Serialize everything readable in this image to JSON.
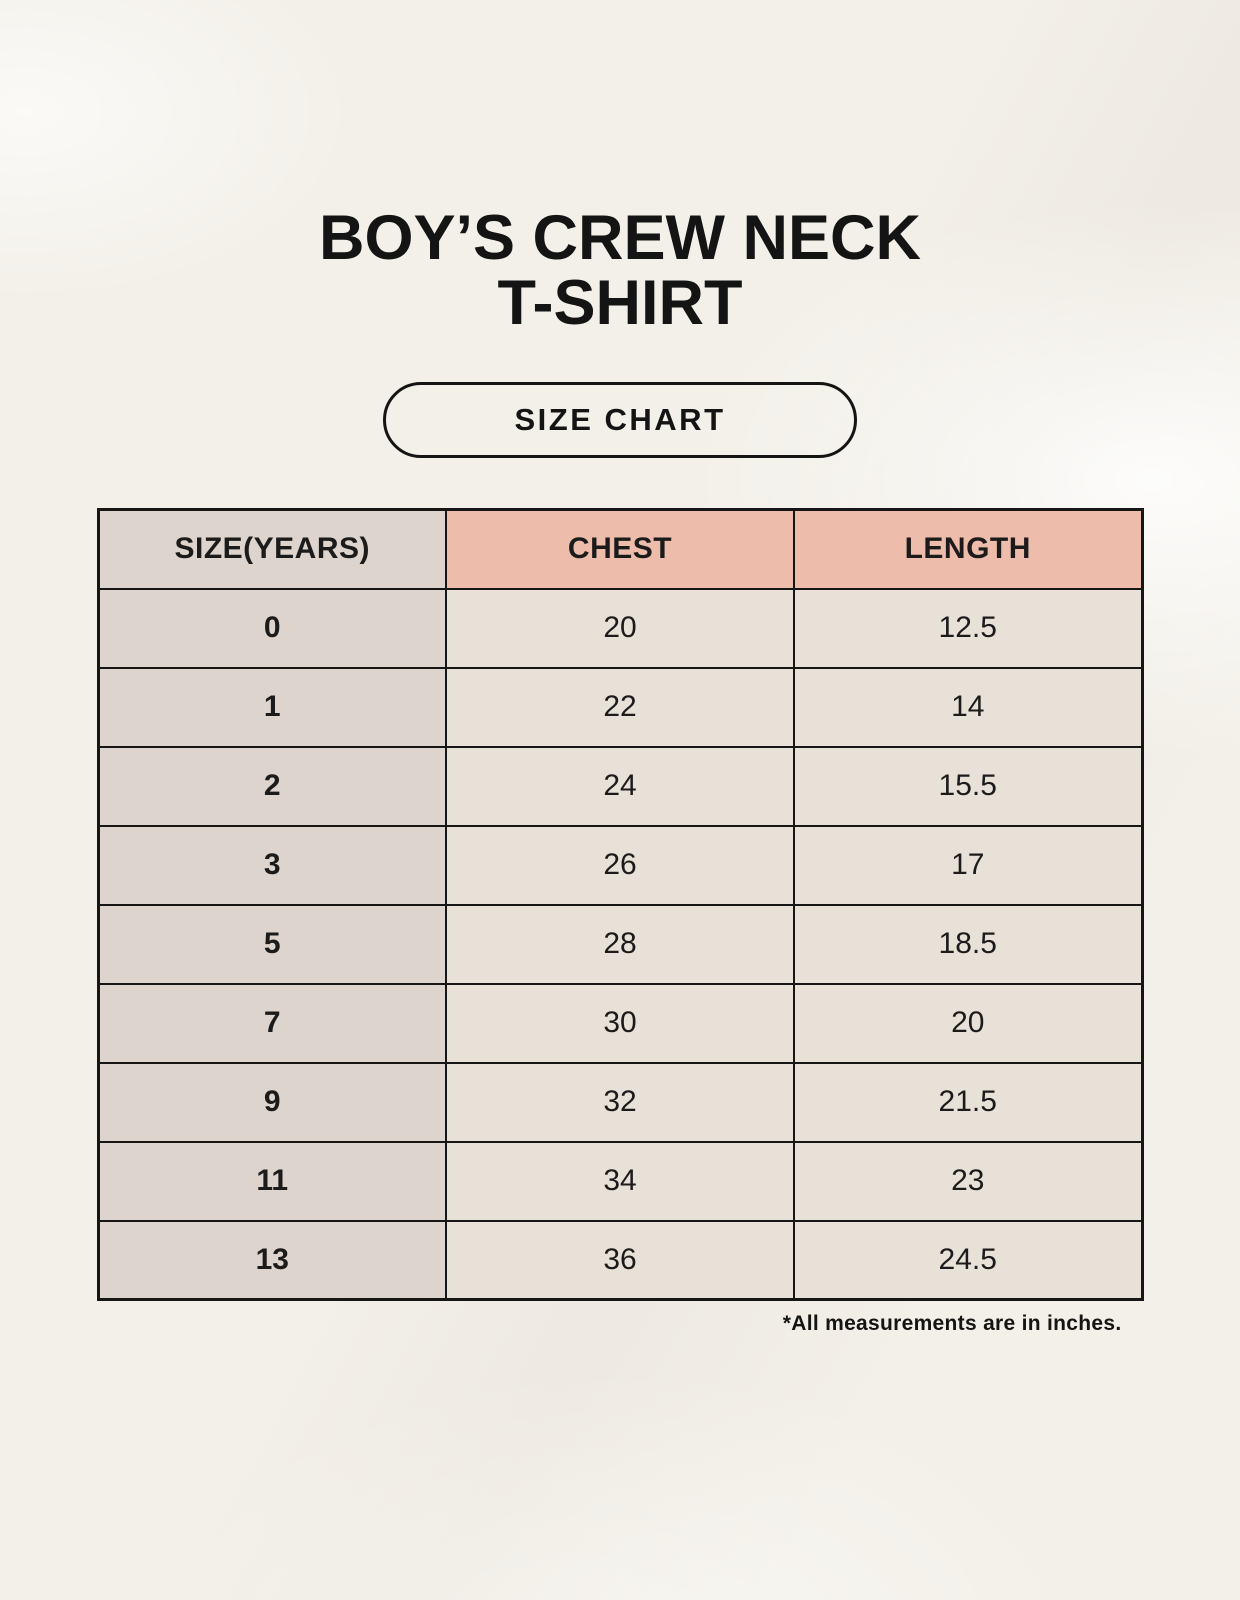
{
  "header": {
    "title_line1": "BOY’S CREW NECK",
    "title_line2": "T-SHIRT",
    "badge_label": "SIZE CHART"
  },
  "chart_data": {
    "type": "table",
    "title": "BOY’S CREW NECK T-SHIRT",
    "subtitle": "SIZE CHART",
    "columns": [
      "SIZE(YEARS)",
      "CHEST",
      "LENGTH"
    ],
    "rows": [
      [
        "0",
        "20",
        "12.5"
      ],
      [
        "1",
        "22",
        "14"
      ],
      [
        "2",
        "24",
        "15.5"
      ],
      [
        "3",
        "26",
        "17"
      ],
      [
        "5",
        "28",
        "18.5"
      ],
      [
        "7",
        "30",
        "20"
      ],
      [
        "9",
        "32",
        "21.5"
      ],
      [
        "11",
        "34",
        "23"
      ],
      [
        "13",
        "36",
        "24.5"
      ]
    ],
    "units": "inches"
  },
  "footnote": "*All measurements are in inches.",
  "colors": {
    "page_background": "#f4f1ea",
    "header_accent": "#edbcab",
    "size_column_background": "#dcd4cd",
    "cell_background": "#e8e1d7",
    "table_border": "#161616",
    "text": "#1b1b1b"
  }
}
